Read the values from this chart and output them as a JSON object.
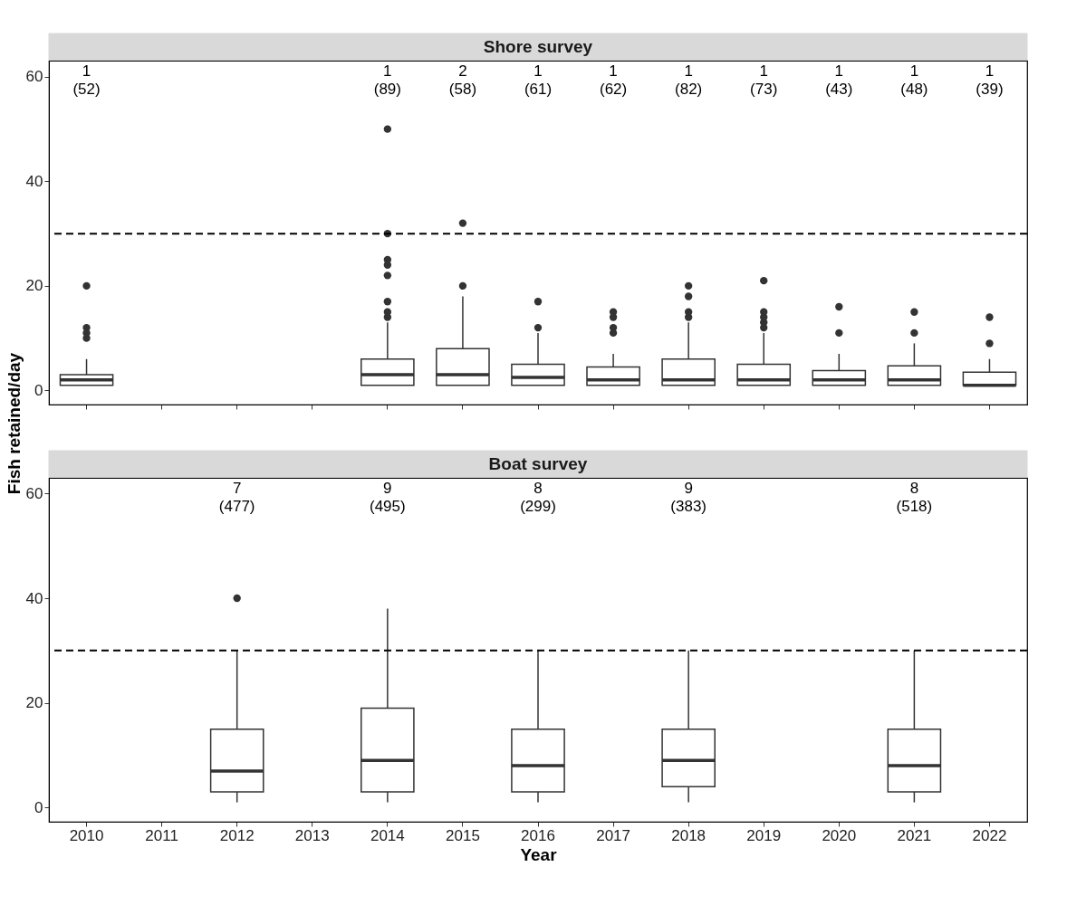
{
  "chart_data": [
    {
      "type": "box",
      "title": "Shore survey",
      "ylabel": "Fish retained/day",
      "categories": [
        "2010",
        "2011",
        "2012",
        "2013",
        "2014",
        "2015",
        "2016",
        "2017",
        "2018",
        "2019",
        "2020",
        "2021",
        "2022"
      ],
      "ylim": [
        -2.7,
        63.1
      ],
      "yticks": [
        0,
        20,
        40,
        60
      ],
      "grid": false,
      "tick_labels": "y",
      "ref_lines": [
        {
          "axis": "y",
          "value": 30,
          "line_style": "dashed",
          "color": "#000000"
        }
      ],
      "series": [
        {
          "color": "#333333",
          "boxes": [
            {
              "low": 1,
              "q1": 1,
              "median": 2,
              "q3": 3,
              "high": 6,
              "outliers": [
                10,
                11,
                12,
                20
              ]
            },
            null,
            null,
            null,
            {
              "low": 1,
              "q1": 1,
              "median": 3,
              "q3": 6,
              "high": 13,
              "outliers": [
                14,
                15,
                17,
                22,
                24,
                25,
                30,
                50
              ]
            },
            {
              "low": 1,
              "q1": 1,
              "median": 3,
              "q3": 8,
              "high": 18,
              "outliers": [
                20,
                32
              ]
            },
            {
              "low": 1,
              "q1": 1,
              "median": 2.5,
              "q3": 5,
              "high": 11,
              "outliers": [
                12,
                17
              ]
            },
            {
              "low": 1,
              "q1": 1,
              "median": 2,
              "q3": 4.5,
              "high": 7,
              "outliers": [
                11,
                12,
                14,
                15
              ]
            },
            {
              "low": 1,
              "q1": 1,
              "median": 2,
              "q3": 6,
              "high": 13,
              "outliers": [
                14,
                15,
                18,
                20
              ]
            },
            {
              "low": 1,
              "q1": 1,
              "median": 2,
              "q3": 5,
              "high": 11,
              "outliers": [
                12,
                13,
                14,
                15,
                21
              ]
            },
            {
              "low": 1,
              "q1": 1,
              "median": 2,
              "q3": 3.8,
              "high": 7,
              "outliers": [
                11,
                16
              ]
            },
            {
              "low": 1,
              "q1": 1,
              "median": 2,
              "q3": 4.7,
              "high": 9,
              "outliers": [
                11,
                15
              ]
            },
            {
              "low": 1,
              "q1": 1,
              "median": 1,
              "q3": 3.5,
              "high": 6,
              "outliers": [
                9,
                14
              ]
            }
          ]
        }
      ],
      "annotations": [
        "1\n(52)",
        "1\n(89)",
        "2\n(58)",
        "1\n(61)",
        "1\n(62)",
        "1\n(82)",
        "1\n(73)",
        "1\n(43)",
        "1\n(48)",
        "1\n(39)"
      ]
    },
    {
      "type": "box",
      "title": "Boat survey",
      "xlabel": "Year",
      "categories": [
        "2010",
        "2011",
        "2012",
        "2013",
        "2014",
        "2015",
        "2016",
        "2017",
        "2018",
        "2019",
        "2020",
        "2021",
        "2022"
      ],
      "ylim": [
        -2.7,
        63
      ],
      "yticks": [
        0,
        20,
        40,
        60
      ],
      "grid": false,
      "ref_lines": [
        {
          "axis": "y",
          "value": 30,
          "line_style": "dashed",
          "color": "#000000"
        }
      ],
      "series": [
        {
          "color": "#333333",
          "boxes": [
            null,
            null,
            {
              "low": 1,
              "q1": 3,
              "median": 7,
              "q3": 15,
              "high": 30,
              "outliers": [
                40
              ]
            },
            null,
            {
              "low": 1,
              "q1": 3,
              "median": 9,
              "q3": 19,
              "high": 38
            },
            null,
            {
              "low": 1,
              "q1": 3,
              "median": 8,
              "q3": 15,
              "high": 30
            },
            null,
            {
              "low": 1,
              "q1": 4,
              "median": 9,
              "q3": 15,
              "high": 30
            },
            null,
            null,
            {
              "low": 1,
              "q1": 3,
              "median": 8,
              "q3": 15,
              "high": 30
            },
            null
          ]
        }
      ],
      "annotations": [
        "7\n(477)",
        "9\n(495)",
        "8\n(299)",
        "9\n(383)",
        "8\n(518)"
      ]
    }
  ]
}
